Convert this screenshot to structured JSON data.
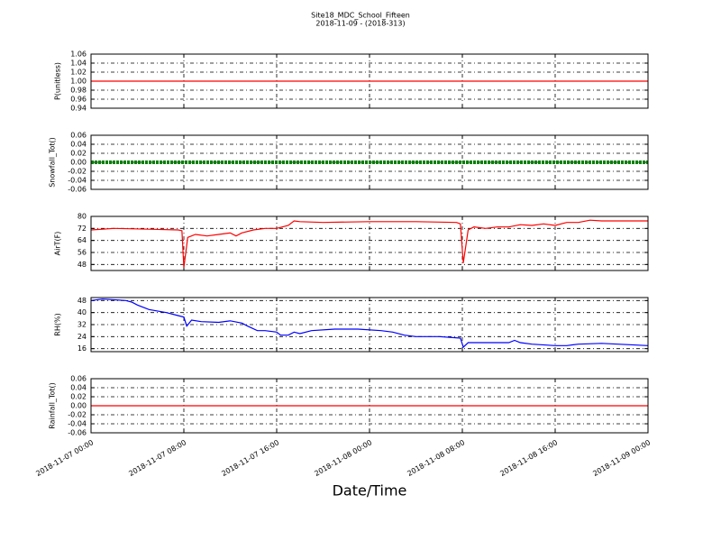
{
  "chart_data": {
    "type": "line",
    "title": "Site18_MDC_School_Fifteen",
    "subtitle": "2018-11-09 - (2018-313)",
    "xlabel": "Date/Time",
    "xlim": [
      "2018-11-07 00:00",
      "2018-11-09 00:00"
    ],
    "xticks": [
      "2018-11-07 00:00",
      "2018-11-07 08:00",
      "2018-11-07 16:00",
      "2018-11-08 00:00",
      "2018-11-08 08:00",
      "2018-11-08 16:00",
      "2018-11-09 00:00"
    ],
    "grid": true,
    "panels": [
      {
        "ylabel": "P(unitless)",
        "ylim": [
          0.94,
          1.06
        ],
        "yticks": [
          0.94,
          0.96,
          0.98,
          {
            "value": 1,
            "label": "1.00"
          },
          1.02,
          1.04,
          1.06
        ],
        "series": [
          {
            "color": "#ff0000",
            "x": [
              "2018-11-07 00:00",
              "2018-11-09 00:00"
            ],
            "values": [
              1,
              1
            ]
          }
        ]
      },
      {
        "ylabel": "Snowfall_Tot()",
        "ylim": [
          -0.06,
          0.06
        ],
        "yticks": [
          -0.06,
          -0.04,
          -0.02,
          {
            "value": 0,
            "label": "0.00"
          },
          0.02,
          0.04,
          0.06
        ],
        "series": [
          {
            "color": "#008000",
            "marker": true,
            "x": [
              "2018-11-07 00:00",
              "2018-11-09 00:00"
            ],
            "values": [
              0,
              0
            ]
          }
        ]
      },
      {
        "ylabel": "AirT(F)",
        "ylim": [
          44,
          80
        ],
        "yticks": [
          48,
          56,
          64,
          72,
          80
        ],
        "series": [
          {
            "color": "#ff0000",
            "x": [
              "2018-11-07 00:00",
              "2018-11-07 02:00",
              "2018-11-07 05:00",
              "2018-11-07 07:30",
              "2018-11-07 07:50",
              "2018-11-07 08:00",
              "2018-11-07 08:20",
              "2018-11-07 09:00",
              "2018-11-07 10:00",
              "2018-11-07 11:00",
              "2018-11-07 12:00",
              "2018-11-07 12:30",
              "2018-11-07 13:00",
              "2018-11-07 14:00",
              "2018-11-07 15:00",
              "2018-11-07 16:00",
              "2018-11-07 17:00",
              "2018-11-07 17:30",
              "2018-11-07 18:00",
              "2018-11-07 20:00",
              "2018-11-08 00:00",
              "2018-11-08 04:00",
              "2018-11-08 07:30",
              "2018-11-08 07:50",
              "2018-11-08 08:05",
              "2018-11-08 08:30",
              "2018-11-08 09:00",
              "2018-11-08 10:00",
              "2018-11-08 11:00",
              "2018-11-08 12:00",
              "2018-11-08 13:00",
              "2018-11-08 14:00",
              "2018-11-08 15:00",
              "2018-11-08 16:00",
              "2018-11-08 17:00",
              "2018-11-08 18:00",
              "2018-11-08 19:00",
              "2018-11-08 20:00",
              "2018-11-09 00:00"
            ],
            "values": [
              71,
              72,
              71.5,
              71,
              70.5,
              46,
              66,
              68,
              67,
              68,
              69,
              67,
              69,
              71,
              72,
              72,
              74,
              77,
              76.5,
              76,
              76.5,
              76.5,
              76,
              75,
              49,
              71,
              73,
              72,
              73,
              73,
              74.5,
              74,
              75,
              74,
              76,
              76,
              77.5,
              77,
              77
            ]
          }
        ]
      },
      {
        "ylabel": "RH(%)",
        "ylim": [
          14,
          50
        ],
        "yticks": [
          16,
          24,
          32,
          40,
          48
        ],
        "series": [
          {
            "color": "#0000ff",
            "x": [
              "2018-11-07 00:00",
              "2018-11-07 01:00",
              "2018-11-07 03:00",
              "2018-11-07 03:30",
              "2018-11-07 04:00",
              "2018-11-07 05:00",
              "2018-11-07 06:30",
              "2018-11-07 07:30",
              "2018-11-07 08:00",
              "2018-11-07 08:15",
              "2018-11-07 08:40",
              "2018-11-07 09:30",
              "2018-11-07 11:00",
              "2018-11-07 12:00",
              "2018-11-07 13:00",
              "2018-11-07 13:30",
              "2018-11-07 14:20",
              "2018-11-07 15:00",
              "2018-11-07 16:00",
              "2018-11-07 16:20",
              "2018-11-07 17:00",
              "2018-11-07 17:30",
              "2018-11-07 18:00",
              "2018-11-07 19:00",
              "2018-11-07 21:00",
              "2018-11-07 23:00",
              "2018-11-08 01:00",
              "2018-11-08 02:00",
              "2018-11-08 03:00",
              "2018-11-08 04:00",
              "2018-11-08 06:00",
              "2018-11-08 07:50",
              "2018-11-08 08:05",
              "2018-11-08 08:30",
              "2018-11-08 10:00",
              "2018-11-08 12:00",
              "2018-11-08 12:30",
              "2018-11-08 13:00",
              "2018-11-08 14:00",
              "2018-11-08 16:00",
              "2018-11-08 17:00",
              "2018-11-08 18:00",
              "2018-11-08 20:00",
              "2018-11-09 00:00"
            ],
            "values": [
              48,
              49,
              48,
              47,
              45,
              42,
              40,
              38,
              37,
              31,
              35,
              34,
              33.5,
              34.5,
              33,
              31,
              28,
              28,
              27,
              25,
              25,
              27,
              26,
              28,
              29,
              29,
              28,
              27,
              25,
              24,
              24,
              23,
              17,
              20,
              20,
              20,
              21.5,
              20,
              19,
              18,
              18,
              19,
              19.5,
              18
            ]
          }
        ]
      },
      {
        "ylabel": "Rainfall_Tot()",
        "ylim": [
          -0.06,
          0.06
        ],
        "yticks": [
          -0.06,
          -0.04,
          -0.02,
          {
            "value": 0,
            "label": "0.00"
          },
          0.02,
          0.04,
          0.06
        ],
        "series": [
          {
            "color": "#ff0000",
            "x": [
              "2018-11-07 00:00",
              "2018-11-09 00:00"
            ],
            "values": [
              0,
              0
            ]
          }
        ]
      }
    ]
  }
}
